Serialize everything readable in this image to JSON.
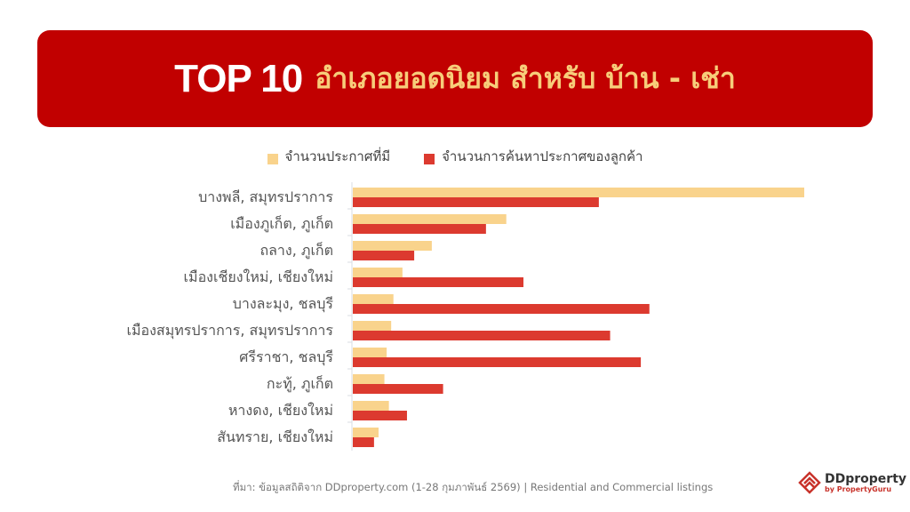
{
  "header": {
    "title_en": "TOP 10",
    "title_th": "อำเภอยอดนิยม สำหรับ บ้าน - เช่า"
  },
  "colors": {
    "banner": "#c10000",
    "listings": "#f9d38c",
    "searches": "#dc3a2f"
  },
  "chart_data": {
    "type": "bar",
    "orientation": "horizontal",
    "categories": [
      "บางพลี, สมุทรปราการ",
      "เมืองภูเก็ต, ภูเก็ต",
      "ถลาง, ภูเก็ต",
      "เมืองเชียงใหม่, เชียงใหม่",
      "บางละมุง, ชลบุรี",
      "เมืองสมุทรปราการ, สมุทรปราการ",
      "ศรีราชา, ชลบุรี",
      "กะทู้, ภูเก็ต",
      "หางดง, เชียงใหม่",
      "สันทราย, เชียงใหม่"
    ],
    "series": [
      {
        "name": "จำนวนประกาศที่มี",
        "values": [
          100,
          34,
          17.5,
          11,
          9,
          8.5,
          7.5,
          7,
          8,
          5.7
        ]
      },
      {
        "name": "จำนวนการค้นหาประกาศของลูกค้า",
        "values": [
          54.5,
          29.5,
          13.6,
          37.8,
          65.7,
          57,
          63.8,
          20,
          12,
          4.7
        ]
      }
    ],
    "xlim": [
      0,
      100
    ],
    "grid": false,
    "legend": "top"
  },
  "footer": {
    "source": "ที่มา: ข้อมูลสถิติจาก DDproperty.com (1-28 กุมภาพันธ์ 2569) | Residential and Commercial listings",
    "logo_name": "DDproperty",
    "logo_sub": "by PropertyGuru"
  }
}
